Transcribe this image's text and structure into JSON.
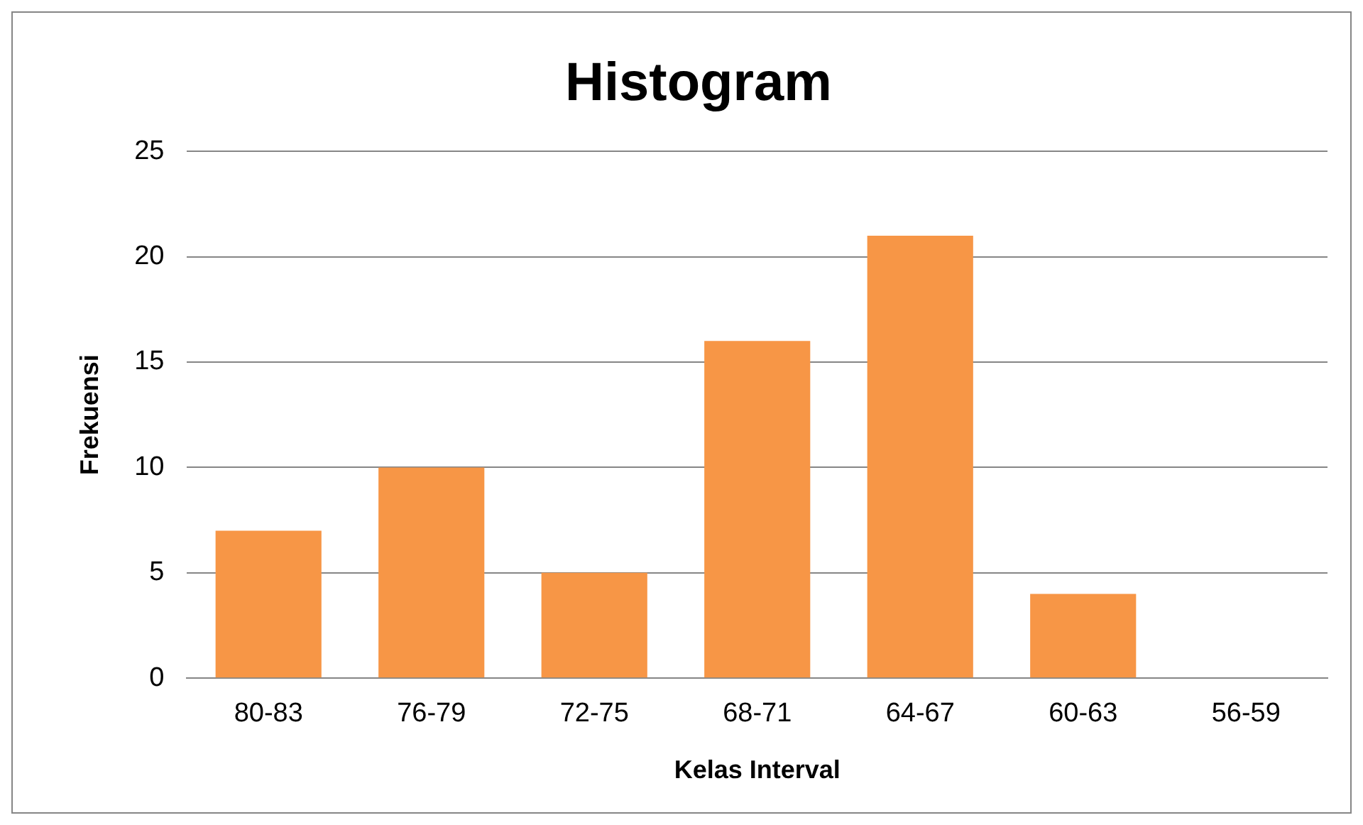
{
  "chart_data": {
    "type": "bar",
    "title": "Histogram",
    "xlabel": "Kelas Interval",
    "ylabel": "Frekuensi",
    "categories": [
      "80-83",
      "76-79",
      "72-75",
      "68-71",
      "64-67",
      "60-63",
      "56-59"
    ],
    "values": [
      7,
      10,
      5,
      16,
      21,
      4,
      0
    ],
    "color": "#f79646",
    "ylim": [
      0,
      25
    ],
    "yticks": [
      0,
      5,
      10,
      15,
      20,
      25
    ],
    "grid": "y",
    "legend": false
  }
}
